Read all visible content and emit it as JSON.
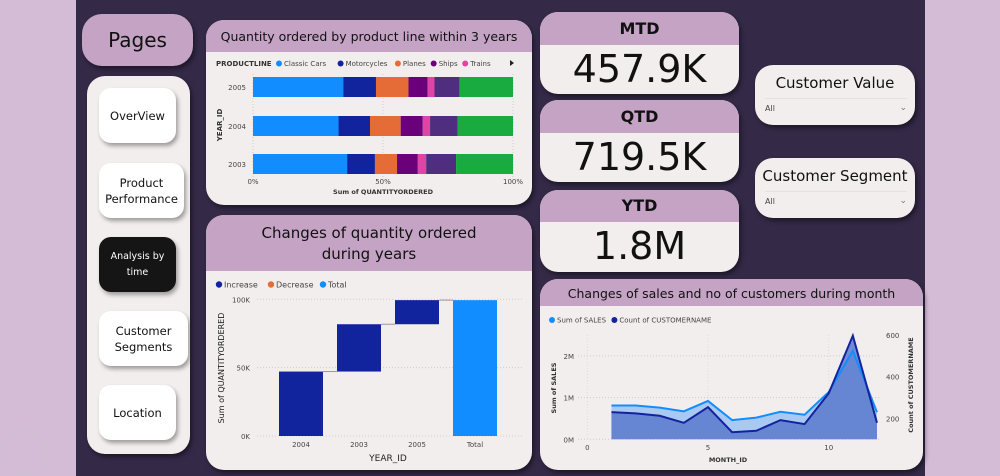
{
  "nav": {
    "title": "Pages",
    "items": [
      {
        "label": "OverView",
        "active": false
      },
      {
        "label": "Product Performance",
        "active": false
      },
      {
        "label": "Analysis by time",
        "active": true
      },
      {
        "label": "Customer Segments",
        "active": false
      },
      {
        "label": "Location",
        "active": false
      }
    ]
  },
  "kpis": [
    {
      "label": "MTD",
      "value": "457.9K"
    },
    {
      "label": "QTD",
      "value": "719.5K"
    },
    {
      "label": "YTD",
      "value": "1.8M"
    }
  ],
  "slicers": [
    {
      "title": "Customer Value",
      "value": "All"
    },
    {
      "title": "Customer Segment",
      "value": "All"
    }
  ],
  "colors": {
    "accent_header": "#c4a3c4",
    "canvas": "#342a48",
    "panel": "#f3eeee"
  },
  "chart_data": [
    {
      "type": "bar",
      "stacked": "100%",
      "orientation": "horizontal",
      "title": "Quantity ordered by product line within 3 years",
      "legend_title": "PRODUCTLINE",
      "legend_position": "top-left",
      "categories": [
        "2005",
        "2004",
        "2003"
      ],
      "xlabel": "Sum of QUANTITYORDERED",
      "ylabel": "YEAR_ID",
      "xticks": [
        "0%",
        "50%",
        "100%"
      ],
      "series": [
        {
          "name": "Classic Cars",
          "color": "#118DFF",
          "values": [
            34.7,
            32.9,
            36.2
          ]
        },
        {
          "name": "Motorcycles",
          "color": "#12239E",
          "values": [
            12.6,
            12.1,
            10.7
          ]
        },
        {
          "name": "Planes",
          "color": "#E66C37",
          "values": [
            12.5,
            11.8,
            8.5
          ]
        },
        {
          "name": "Ships",
          "color": "#6B007B",
          "values": [
            7.4,
            8.5,
            8.0
          ]
        },
        {
          "name": "Trains",
          "color": "#E044A7",
          "values": [
            2.6,
            2.8,
            3.2
          ]
        },
        {
          "color": "#4F2D7F",
          "values": [
            9.6,
            10.6,
            11.5
          ]
        },
        {
          "color": "#1AAB40",
          "values": [
            20.6,
            21.3,
            21.9
          ]
        }
      ]
    },
    {
      "type": "waterfall",
      "title": "Changes of quantity ordered during years",
      "legend": [
        {
          "name": "Increase",
          "color": "#12239E"
        },
        {
          "name": "Decrease",
          "color": "#E66C37"
        },
        {
          "name": "Total",
          "color": "#118DFF"
        }
      ],
      "legend_position": "top-left",
      "categories": [
        "2004",
        "2003",
        "2005",
        "Total"
      ],
      "values": [
        47151,
        34612,
        17631,
        99394
      ],
      "xlabel": "YEAR_ID",
      "ylabel": "Sum of QUANTITYORDERED",
      "ylim": [
        0,
        100000
      ],
      "yticks": [
        "0K",
        "50K",
        "100K"
      ],
      "grid": true
    },
    {
      "type": "area",
      "title": "Changes of sales and no of customers during month",
      "legend_position": "top-left",
      "x": [
        1,
        2,
        3,
        4,
        5,
        6,
        7,
        8,
        9,
        10,
        11,
        12
      ],
      "series": [
        {
          "name": "Sum of SALES",
          "color": "#118DFF",
          "axis": "left",
          "values": [
            810000,
            810000,
            760000,
            670000,
            920000,
            460000,
            520000,
            660000,
            590000,
            1130000,
            2120000,
            650000
          ]
        },
        {
          "name": "Count of CUSTOMERNAME",
          "color": "#12239E",
          "axis": "right",
          "values": [
            230,
            224,
            213,
            179,
            254,
            134,
            141,
            192,
            173,
            320,
            597,
            179
          ]
        }
      ],
      "xlabel": "MONTH_ID",
      "ylabel": "Sum of SALES",
      "y2label": "Count of CUSTOMERNAME",
      "xlim": [
        0,
        12
      ],
      "xticks": [
        "0",
        "5",
        "10"
      ],
      "ylim": [
        0,
        2500000
      ],
      "yticks": [
        "0M",
        "1M",
        "2M"
      ],
      "y2lim": [
        100,
        600
      ],
      "y2ticks": [
        "200",
        "400",
        "600"
      ],
      "grid": true
    }
  ]
}
